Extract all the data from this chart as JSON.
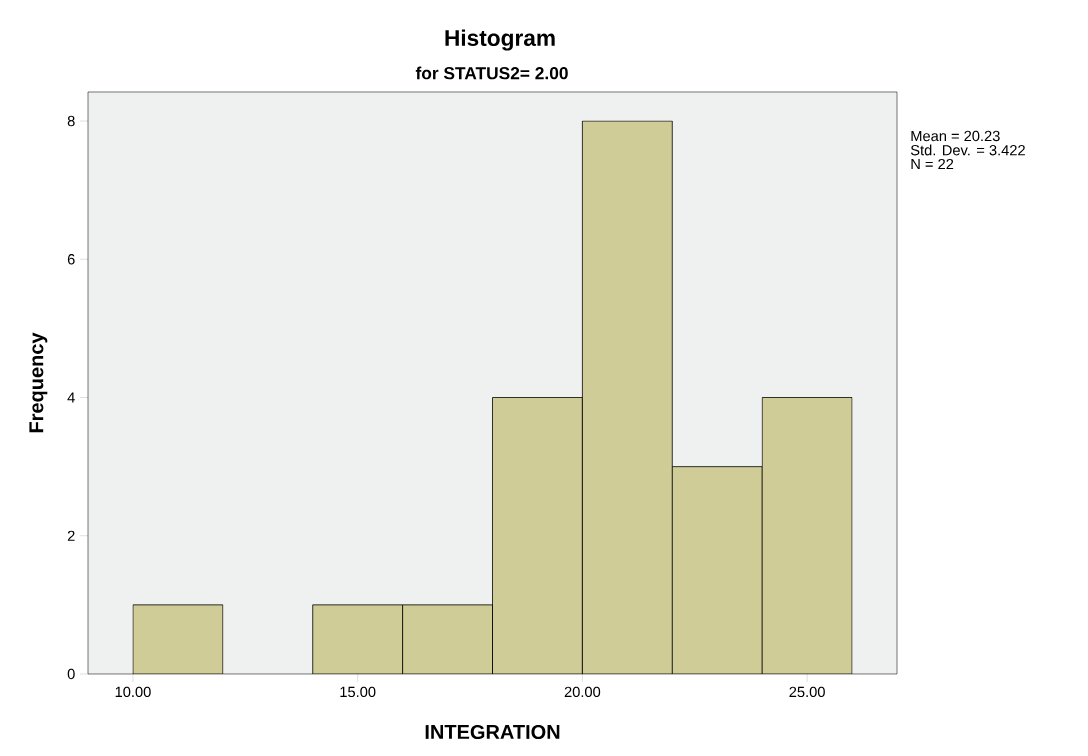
{
  "chart_data": {
    "type": "histogram",
    "title": "Histogram",
    "subtitle": "for STATUS2= 2.00",
    "xlabel": "INTEGRATION",
    "ylabel": "Frequency",
    "bins": [
      10,
      12,
      14,
      16,
      18,
      20,
      22,
      24,
      26
    ],
    "values": [
      1,
      0,
      1,
      1,
      4,
      8,
      3,
      4
    ],
    "color": "#cfcc98",
    "xlim": [
      9,
      27
    ],
    "ylim": [
      0,
      8.42
    ],
    "xticks": [
      {
        "value": 10,
        "label": "10.00"
      },
      {
        "value": 15,
        "label": "15.00"
      },
      {
        "value": 20,
        "label": "20.00"
      },
      {
        "value": 25,
        "label": "25.00"
      }
    ],
    "yticks": [
      0,
      2,
      4,
      6,
      8
    ],
    "grid": false,
    "annotations": [
      "Mean = 20.23",
      "Std. Dev. = 3.422",
      "N = 22"
    ]
  }
}
